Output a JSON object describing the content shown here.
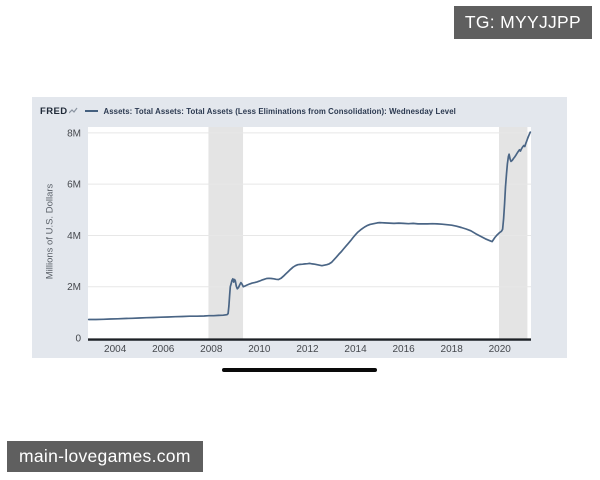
{
  "overlays": {
    "top_right_badge": "TG: MYYJJPP",
    "bottom_left_badge": "main-lovegames.com",
    "badge_bg": "#5f5f5f",
    "badge_text_color": "#ffffff"
  },
  "chart_header": {
    "brand": "FRED",
    "title": "Assets: Total Assets: Total Assets (Less Eliminations from Consolidation): Wednesday Level"
  },
  "chart_data": {
    "type": "line",
    "title": "Assets: Total Assets: Total Assets (Less Eliminations from Consolidation): Wednesday Level",
    "xlabel": "",
    "ylabel": "Millions of U.S. Dollars",
    "xlim": [
      2002.87,
      2021.3
    ],
    "ylim": [
      0,
      8.23
    ],
    "x_tick_values": [
      2004,
      2006,
      2008,
      2010,
      2012,
      2014,
      2016,
      2018,
      2020
    ],
    "x_tick_labels": [
      "2004",
      "2006",
      "2008",
      "2010",
      "2012",
      "2014",
      "2016",
      "2018",
      "2020"
    ],
    "y_tick_values": [
      0,
      2,
      4,
      6,
      8
    ],
    "y_tick_labels": [
      "0",
      "2M",
      "4M",
      "6M",
      "8M"
    ],
    "grid": "horizontal",
    "legend_position": "top-left",
    "colors": {
      "line": "#4a6585",
      "card_bg": "#e3e7ed",
      "plot_bg": "#ffffff",
      "recession_band": "#e4e4e4",
      "gridline": "#e7e7e7",
      "axis_line": "#1d2126",
      "tick_text": "#46494e"
    },
    "recession_bands": [
      [
        2007.88,
        2009.32
      ],
      [
        2019.97,
        2021.15
      ]
    ],
    "series": [
      {
        "name": "Assets: Total Assets: Total Assets (Less Eliminations from Consolidation): Wednesday Level",
        "points": [
          [
            2002.9,
            0.72
          ],
          [
            2003.2,
            0.72
          ],
          [
            2003.5,
            0.73
          ],
          [
            2003.8,
            0.74
          ],
          [
            2004.1,
            0.75
          ],
          [
            2004.4,
            0.76
          ],
          [
            2004.7,
            0.77
          ],
          [
            2005.0,
            0.78
          ],
          [
            2005.3,
            0.79
          ],
          [
            2005.6,
            0.8
          ],
          [
            2005.9,
            0.81
          ],
          [
            2006.2,
            0.82
          ],
          [
            2006.5,
            0.83
          ],
          [
            2006.8,
            0.84
          ],
          [
            2007.1,
            0.85
          ],
          [
            2007.4,
            0.85
          ],
          [
            2007.7,
            0.86
          ],
          [
            2007.9,
            0.87
          ],
          [
            2008.1,
            0.87
          ],
          [
            2008.3,
            0.88
          ],
          [
            2008.5,
            0.89
          ],
          [
            2008.65,
            0.91
          ],
          [
            2008.7,
            0.95
          ],
          [
            2008.73,
            1.25
          ],
          [
            2008.76,
            1.65
          ],
          [
            2008.79,
            2.0
          ],
          [
            2008.83,
            2.14
          ],
          [
            2008.86,
            2.25
          ],
          [
            2008.9,
            2.31
          ],
          [
            2008.93,
            2.18
          ],
          [
            2008.97,
            2.28
          ],
          [
            2009.0,
            2.23
          ],
          [
            2009.04,
            2.02
          ],
          [
            2009.08,
            1.92
          ],
          [
            2009.13,
            1.97
          ],
          [
            2009.18,
            2.07
          ],
          [
            2009.23,
            2.16
          ],
          [
            2009.28,
            2.1
          ],
          [
            2009.33,
            2.0
          ],
          [
            2009.4,
            2.03
          ],
          [
            2009.5,
            2.07
          ],
          [
            2009.6,
            2.11
          ],
          [
            2009.7,
            2.14
          ],
          [
            2009.8,
            2.16
          ],
          [
            2009.9,
            2.19
          ],
          [
            2010.0,
            2.22
          ],
          [
            2010.1,
            2.26
          ],
          [
            2010.2,
            2.29
          ],
          [
            2010.3,
            2.32
          ],
          [
            2010.4,
            2.33
          ],
          [
            2010.5,
            2.32
          ],
          [
            2010.6,
            2.31
          ],
          [
            2010.7,
            2.29
          ],
          [
            2010.8,
            2.28
          ],
          [
            2010.9,
            2.33
          ],
          [
            2011.0,
            2.41
          ],
          [
            2011.1,
            2.5
          ],
          [
            2011.2,
            2.59
          ],
          [
            2011.3,
            2.68
          ],
          [
            2011.4,
            2.76
          ],
          [
            2011.5,
            2.82
          ],
          [
            2011.6,
            2.86
          ],
          [
            2011.7,
            2.87
          ],
          [
            2011.8,
            2.88
          ],
          [
            2011.9,
            2.89
          ],
          [
            2012.0,
            2.9
          ],
          [
            2012.1,
            2.91
          ],
          [
            2012.2,
            2.89
          ],
          [
            2012.3,
            2.88
          ],
          [
            2012.4,
            2.86
          ],
          [
            2012.5,
            2.84
          ],
          [
            2012.6,
            2.82
          ],
          [
            2012.7,
            2.84
          ],
          [
            2012.8,
            2.86
          ],
          [
            2012.9,
            2.89
          ],
          [
            2013.0,
            2.95
          ],
          [
            2013.1,
            3.05
          ],
          [
            2013.2,
            3.15
          ],
          [
            2013.3,
            3.26
          ],
          [
            2013.4,
            3.36
          ],
          [
            2013.5,
            3.47
          ],
          [
            2013.6,
            3.58
          ],
          [
            2013.7,
            3.69
          ],
          [
            2013.8,
            3.8
          ],
          [
            2013.9,
            3.92
          ],
          [
            2014.0,
            4.03
          ],
          [
            2014.1,
            4.13
          ],
          [
            2014.2,
            4.21
          ],
          [
            2014.3,
            4.28
          ],
          [
            2014.4,
            4.34
          ],
          [
            2014.5,
            4.39
          ],
          [
            2014.6,
            4.43
          ],
          [
            2014.7,
            4.45
          ],
          [
            2014.8,
            4.47
          ],
          [
            2014.9,
            4.49
          ],
          [
            2015.0,
            4.5
          ],
          [
            2015.2,
            4.49
          ],
          [
            2015.4,
            4.48
          ],
          [
            2015.6,
            4.47
          ],
          [
            2015.8,
            4.48
          ],
          [
            2016.0,
            4.47
          ],
          [
            2016.2,
            4.46
          ],
          [
            2016.4,
            4.47
          ],
          [
            2016.6,
            4.45
          ],
          [
            2016.8,
            4.45
          ],
          [
            2017.0,
            4.45
          ],
          [
            2017.2,
            4.46
          ],
          [
            2017.4,
            4.45
          ],
          [
            2017.6,
            4.44
          ],
          [
            2017.8,
            4.42
          ],
          [
            2018.0,
            4.4
          ],
          [
            2018.2,
            4.36
          ],
          [
            2018.4,
            4.31
          ],
          [
            2018.6,
            4.25
          ],
          [
            2018.8,
            4.18
          ],
          [
            2019.0,
            4.07
          ],
          [
            2019.2,
            3.97
          ],
          [
            2019.4,
            3.87
          ],
          [
            2019.6,
            3.79
          ],
          [
            2019.68,
            3.76
          ],
          [
            2019.8,
            3.92
          ],
          [
            2019.9,
            4.03
          ],
          [
            2020.0,
            4.12
          ],
          [
            2020.07,
            4.16
          ],
          [
            2020.12,
            4.24
          ],
          [
            2020.16,
            4.65
          ],
          [
            2020.2,
            5.25
          ],
          [
            2020.24,
            5.9
          ],
          [
            2020.28,
            6.4
          ],
          [
            2020.32,
            6.8
          ],
          [
            2020.36,
            7.08
          ],
          [
            2020.39,
            7.17
          ],
          [
            2020.43,
            6.98
          ],
          [
            2020.47,
            6.89
          ],
          [
            2020.52,
            6.93
          ],
          [
            2020.57,
            7.0
          ],
          [
            2020.62,
            7.06
          ],
          [
            2020.67,
            7.13
          ],
          [
            2020.72,
            7.21
          ],
          [
            2020.77,
            7.28
          ],
          [
            2020.82,
            7.34
          ],
          [
            2020.86,
            7.29
          ],
          [
            2020.9,
            7.37
          ],
          [
            2020.95,
            7.45
          ],
          [
            2021.0,
            7.51
          ],
          [
            2021.04,
            7.47
          ],
          [
            2021.08,
            7.58
          ],
          [
            2021.12,
            7.68
          ],
          [
            2021.16,
            7.78
          ],
          [
            2021.2,
            7.88
          ],
          [
            2021.24,
            7.97
          ],
          [
            2021.27,
            8.03
          ]
        ]
      }
    ]
  }
}
